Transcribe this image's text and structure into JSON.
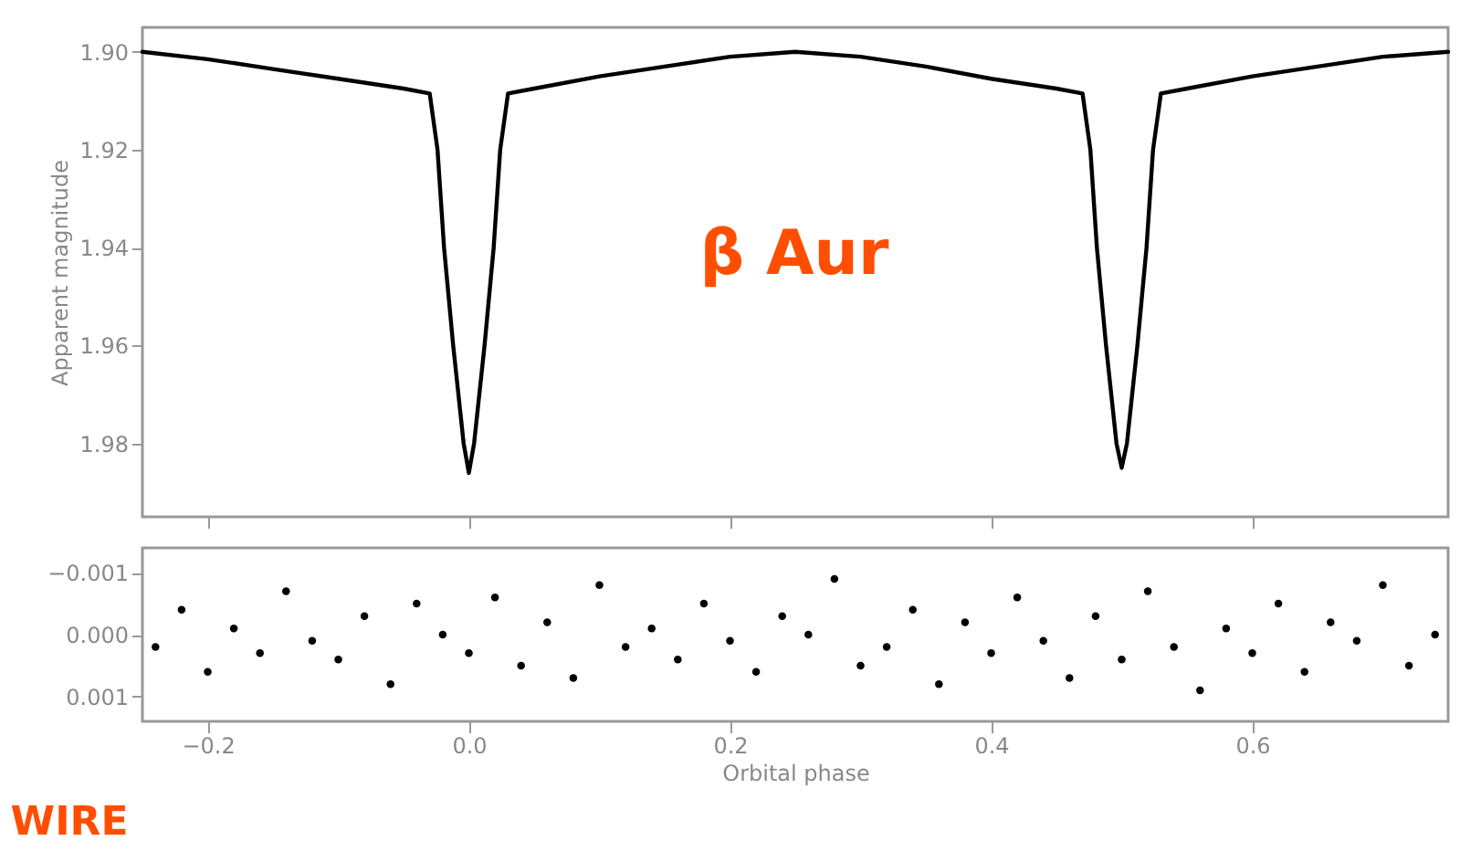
{
  "chart_data": [
    {
      "type": "line",
      "ylabel": "Apparent magnitude",
      "annotations": [
        "β Aur"
      ],
      "x": [
        -0.25,
        -0.2,
        -0.15,
        -0.1,
        -0.05,
        -0.03,
        -0.024,
        -0.019,
        -0.012,
        -0.004,
        0.0,
        0.004,
        0.012,
        0.019,
        0.024,
        0.03,
        0.05,
        0.1,
        0.15,
        0.2,
        0.25,
        0.3,
        0.35,
        0.4,
        0.45,
        0.47,
        0.476,
        0.481,
        0.488,
        0.496,
        0.5,
        0.504,
        0.512,
        0.519,
        0.524,
        0.53,
        0.55,
        0.6,
        0.65,
        0.7,
        0.75
      ],
      "series": [
        {
          "color": "#000000",
          "values": [
            1.9,
            1.9015,
            1.9035,
            1.9055,
            1.9075,
            1.9085,
            1.92,
            1.94,
            1.96,
            1.98,
            1.986,
            1.98,
            1.96,
            1.94,
            1.92,
            1.9085,
            1.9075,
            1.905,
            1.903,
            1.901,
            1.9,
            1.901,
            1.903,
            1.9055,
            1.9075,
            1.9085,
            1.92,
            1.94,
            1.96,
            1.98,
            1.985,
            1.98,
            1.96,
            1.94,
            1.92,
            1.9085,
            1.9075,
            1.905,
            1.903,
            1.901,
            1.9
          ]
        }
      ],
      "xlim": [
        -0.25,
        0.75
      ],
      "xticks": [
        -0.2,
        0,
        0.2,
        0.4,
        0.6
      ],
      "ylim": [
        1.995,
        1.895
      ],
      "yticks": [
        {
          "value": 1.9,
          "label": "1.90"
        },
        1.92,
        1.94,
        1.96,
        1.98
      ],
      "tick_labels": "y",
      "grid": false
    },
    {
      "type": "scatter",
      "xlabel": "Orbital phase",
      "annotations": [
        "WIRE"
      ],
      "marker": "circle",
      "x": [
        -0.24,
        -0.22,
        -0.2,
        -0.18,
        -0.16,
        -0.14,
        -0.12,
        -0.1,
        -0.08,
        -0.06,
        -0.04,
        -0.02,
        0.0,
        0.02,
        0.04,
        0.06,
        0.08,
        0.1,
        0.12,
        0.14,
        0.16,
        0.18,
        0.2,
        0.22,
        0.24,
        0.26,
        0.28,
        0.3,
        0.32,
        0.34,
        0.36,
        0.38,
        0.4,
        0.42,
        0.44,
        0.46,
        0.48,
        0.5,
        0.52,
        0.54,
        0.56,
        0.58,
        0.6,
        0.62,
        0.64,
        0.66,
        0.68,
        0.7,
        0.72,
        0.74
      ],
      "series": [
        {
          "color": "#000000",
          "values": [
            0.0002,
            -0.0004,
            0.0006,
            -0.0001,
            0.0003,
            -0.0007,
            0.0001,
            0.0004,
            -0.0003,
            0.0008,
            -0.0005,
            0.0,
            0.0003,
            -0.0006,
            0.0005,
            -0.0002,
            0.0007,
            -0.0008,
            0.0002,
            -0.0001,
            0.0004,
            -0.0005,
            0.0001,
            0.0006,
            -0.0003,
            0.0,
            -0.0009,
            0.0005,
            0.0002,
            -0.0004,
            0.0008,
            -0.0002,
            0.0003,
            -0.0006,
            0.0001,
            0.0007,
            -0.0003,
            0.0004,
            -0.0007,
            0.0002,
            0.0009,
            -0.0001,
            0.0003,
            -0.0005,
            0.0006,
            -0.0002,
            0.0001,
            -0.0008,
            0.0005,
            0.0
          ]
        }
      ],
      "xlim": [
        -0.25,
        0.75
      ],
      "xticks": [
        -0.2,
        {
          "value": 0,
          "label": "0.0"
        },
        0.2,
        0.4,
        0.6
      ],
      "ylim": [
        0.0014,
        -0.0014
      ],
      "yticks": [
        -0.001,
        {
          "value": 0,
          "label": "0.000"
        },
        0.001
      ],
      "grid": false
    }
  ]
}
